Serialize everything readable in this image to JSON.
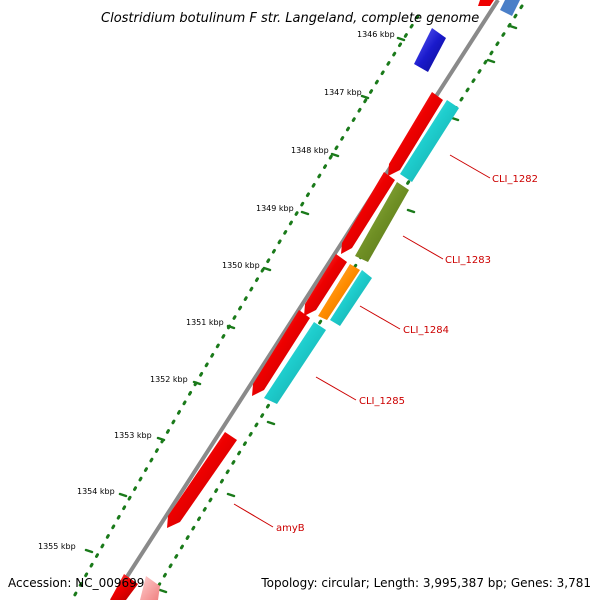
{
  "title": "Clostridium botulinum F str. Langeland, complete genome",
  "footer": {
    "accession": "Accession: NC_009699",
    "topology": "Topology: circular; Length: 3,995,387 bp; Genes: 3,781"
  },
  "ticks": [
    "1346 kbp",
    "1347 kbp",
    "1348 kbp",
    "1349 kbp",
    "1350 kbp",
    "1351 kbp",
    "1352 kbp",
    "1353 kbp",
    "1354 kbp",
    "1355 kbp"
  ],
  "gene_labels": [
    "CLI_1282",
    "CLI_1283",
    "CLI_1284",
    "CLI_1285",
    "amyB"
  ],
  "colors": {
    "backbone": "#8a8a8a",
    "tick_ring": "#1a7a1a",
    "cds_forward": "#ee0000",
    "cds_reverse_cyan": "#1ecece",
    "cds_olive": "#6f8f24",
    "cds_orange": "#ff8c00",
    "cds_blue": "#1a1acc",
    "label_red": "#cc0000"
  }
}
